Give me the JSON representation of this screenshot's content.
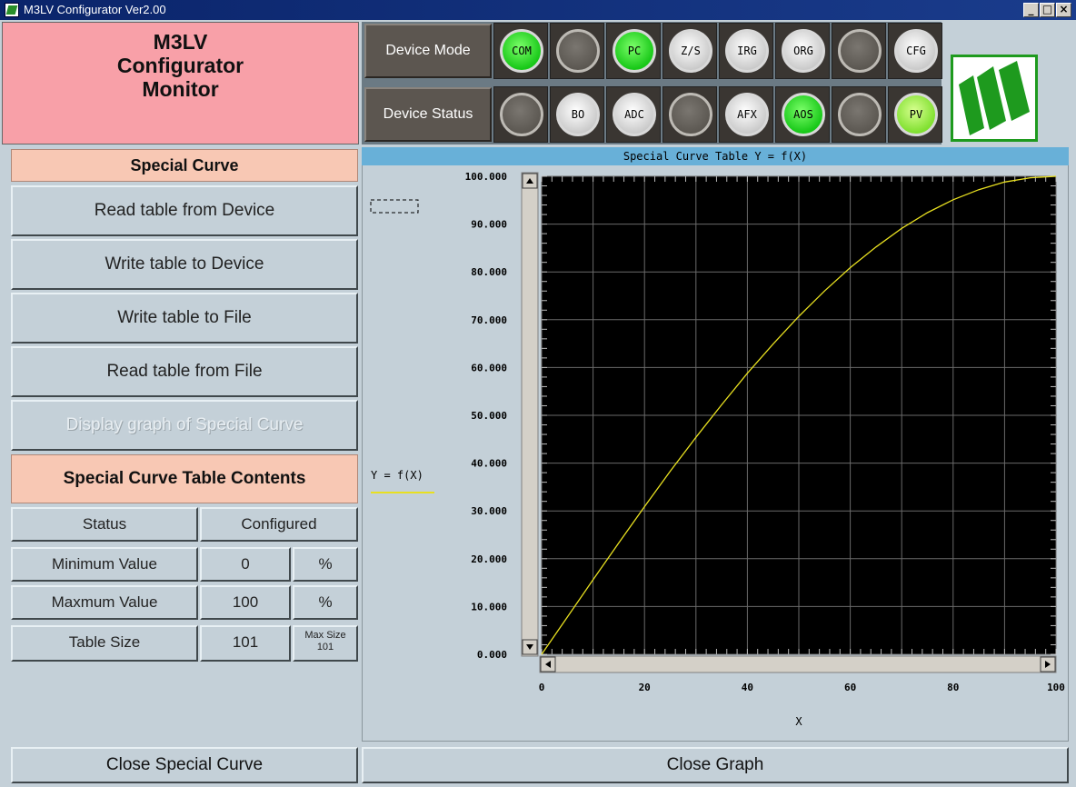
{
  "window": {
    "title": "M3LV Configurator Ver2.00"
  },
  "header": {
    "line1": "M3LV",
    "line2": "Configurator",
    "line3": "Monitor"
  },
  "status_panel": {
    "device_mode_label": "Device Mode",
    "device_status_label": "Device Status",
    "mode_leds": [
      {
        "label": "COM",
        "state": "green"
      },
      {
        "label": "",
        "state": "off"
      },
      {
        "label": "PC",
        "state": "green"
      },
      {
        "label": "Z/S",
        "state": "white"
      },
      {
        "label": "IRG",
        "state": "white"
      },
      {
        "label": "ORG",
        "state": "white"
      },
      {
        "label": "",
        "state": "off"
      },
      {
        "label": "CFG",
        "state": "white"
      }
    ],
    "status_leds": [
      {
        "label": "",
        "state": "off"
      },
      {
        "label": "BO",
        "state": "white"
      },
      {
        "label": "ADC",
        "state": "white"
      },
      {
        "label": "",
        "state": "off"
      },
      {
        "label": "AFX",
        "state": "white"
      },
      {
        "label": "AOS",
        "state": "green"
      },
      {
        "label": "",
        "state": "off"
      },
      {
        "label": "PV",
        "state": "lime"
      }
    ]
  },
  "left_panel": {
    "section_title": "Special Curve",
    "buttons": [
      {
        "label": "Read table from Device"
      },
      {
        "label": "Write table to Device"
      },
      {
        "label": "Write table to File"
      },
      {
        "label": "Read table from File"
      },
      {
        "label": "Display graph of Special Curve"
      }
    ],
    "contents_title": "Special Curve Table Contents",
    "table": {
      "status_label": "Status",
      "status_value": "Configured",
      "min_label": "Minimum Value",
      "min_value": "0",
      "min_unit": "%",
      "max_label": "Maxmum Value",
      "max_value": "100",
      "max_unit": "%",
      "size_label": "Table Size",
      "size_value": "101",
      "max_size_label": "Max Size",
      "max_size_value": "101"
    }
  },
  "graph": {
    "title": "Special Curve Table Y = f(X)",
    "legend": "Y = f(X)",
    "xlabel": "X"
  },
  "chart_data": {
    "type": "line",
    "title": "Special Curve Table Y = f(X)",
    "xlabel": "X",
    "ylabel": "",
    "xlim": [
      0,
      100
    ],
    "ylim": [
      0,
      100
    ],
    "x_ticks": [
      "0",
      "20",
      "40",
      "60",
      "80",
      "100"
    ],
    "y_ticks": [
      "0.000",
      "10.000",
      "20.000",
      "30.000",
      "40.000",
      "50.000",
      "60.000",
      "70.000",
      "80.000",
      "90.000",
      "100.000"
    ],
    "grid": true,
    "series": [
      {
        "name": "Y = f(X)",
        "color": "#e8e020",
        "x": [
          0,
          5,
          10,
          15,
          20,
          25,
          30,
          35,
          40,
          45,
          50,
          55,
          60,
          65,
          70,
          75,
          80,
          85,
          90,
          95,
          100
        ],
        "y": [
          0,
          7.8,
          15.6,
          23.3,
          30.9,
          38.3,
          45.4,
          52.2,
          58.8,
          64.9,
          70.7,
          76.0,
          80.9,
          85.2,
          89.1,
          92.4,
          95.1,
          97.2,
          98.8,
          99.7,
          100
        ]
      }
    ]
  },
  "bottom": {
    "close_special_curve": "Close Special Curve",
    "close_graph": "Close Graph"
  },
  "colors": {
    "header_pink": "#f8a0a8",
    "section_peach": "#f8c8b4",
    "plot_background": "#000000",
    "curve": "#e8e020",
    "graph_title_bar": "#68b0d8"
  }
}
